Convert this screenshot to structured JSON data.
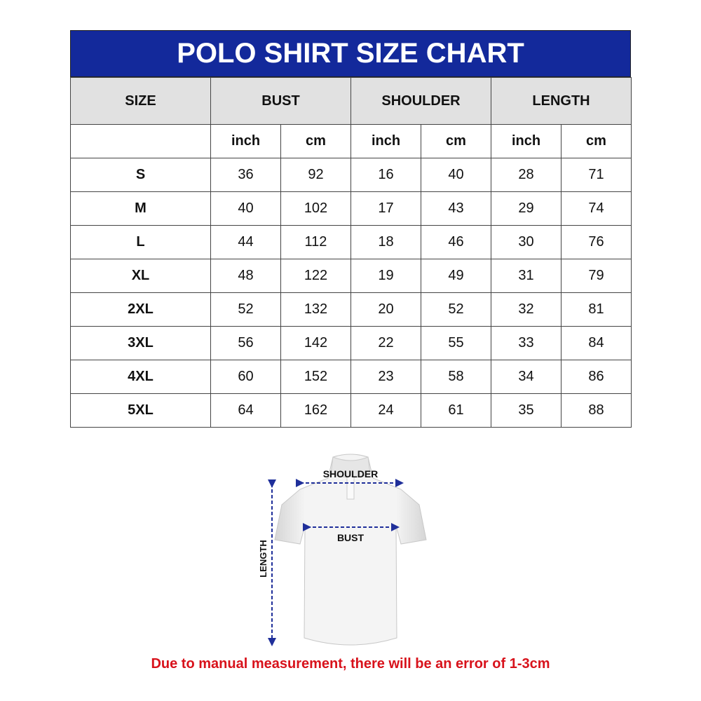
{
  "title": "POLO SHIRT SIZE CHART",
  "headers": {
    "size": "SIZE",
    "bust": "BUST",
    "shoulder": "SHOULDER",
    "length": "LENGTH"
  },
  "units": {
    "inch": "inch",
    "cm": "cm"
  },
  "rows": [
    {
      "size": "S",
      "bust_in": "36",
      "bust_cm": "92",
      "shoulder_in": "16",
      "shoulder_cm": "40",
      "length_in": "28",
      "length_cm": "71"
    },
    {
      "size": "M",
      "bust_in": "40",
      "bust_cm": "102",
      "shoulder_in": "17",
      "shoulder_cm": "43",
      "length_in": "29",
      "length_cm": "74"
    },
    {
      "size": "L",
      "bust_in": "44",
      "bust_cm": "112",
      "shoulder_in": "18",
      "shoulder_cm": "46",
      "length_in": "30",
      "length_cm": "76"
    },
    {
      "size": "XL",
      "bust_in": "48",
      "bust_cm": "122",
      "shoulder_in": "19",
      "shoulder_cm": "49",
      "length_in": "31",
      "length_cm": "79"
    },
    {
      "size": "2XL",
      "bust_in": "52",
      "bust_cm": "132",
      "shoulder_in": "20",
      "shoulder_cm": "52",
      "length_in": "32",
      "length_cm": "81"
    },
    {
      "size": "3XL",
      "bust_in": "56",
      "bust_cm": "142",
      "shoulder_in": "22",
      "shoulder_cm": "55",
      "length_in": "33",
      "length_cm": "84"
    },
    {
      "size": "4XL",
      "bust_in": "60",
      "bust_cm": "152",
      "shoulder_in": "23",
      "shoulder_cm": "58",
      "length_in": "34",
      "length_cm": "86"
    },
    {
      "size": "5XL",
      "bust_in": "64",
      "bust_cm": "162",
      "shoulder_in": "24",
      "shoulder_cm": "61",
      "length_in": "35",
      "length_cm": "88"
    }
  ],
  "illustration": {
    "shoulder_label": "SHOULDER",
    "bust_label": "BUST",
    "length_label": "LENGTH"
  },
  "footer": "Due to manual measurement, there will be an error of 1-3cm",
  "colors": {
    "title_bg": "#13299b",
    "header_bg": "#e1e1e1",
    "arrow": "#1f2f9a",
    "footer_text": "#d8121b"
  }
}
